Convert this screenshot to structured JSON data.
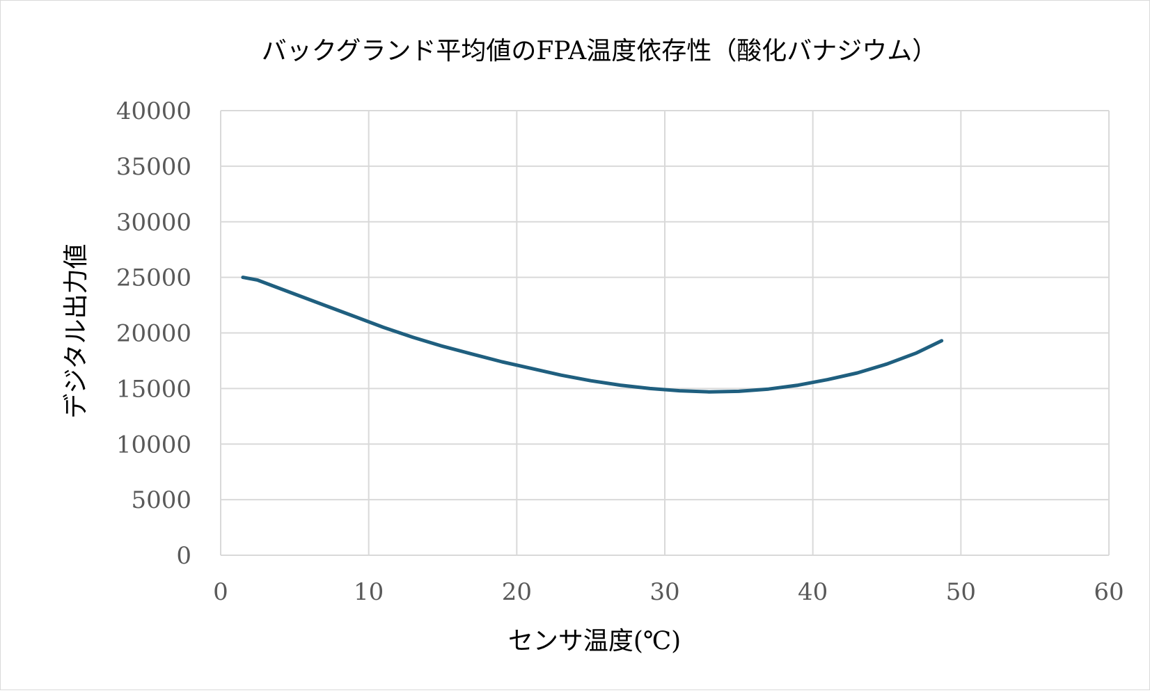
{
  "chart_data": {
    "type": "line",
    "title": "バックグランド平均値のFPA温度依存性（酸化バナジウム）",
    "xlabel": "センサ温度(℃)",
    "ylabel": "デジタル出力値",
    "xlim": [
      0,
      60
    ],
    "ylim": [
      0,
      40000
    ],
    "x_ticks": [
      "0",
      "10",
      "20",
      "30",
      "40",
      "50",
      "60"
    ],
    "y_ticks": [
      "0",
      "5000",
      "10000",
      "15000",
      "20000",
      "25000",
      "30000",
      "35000",
      "40000"
    ],
    "grid": true,
    "legend": "none",
    "line_color": "#1f5f7f",
    "series": [
      {
        "x": [
          1.5,
          2.5,
          3.5,
          5,
          7,
          9,
          11,
          13,
          15,
          17,
          19,
          21,
          23,
          25,
          27,
          29,
          31,
          33,
          35,
          37,
          39,
          41,
          43,
          45,
          47,
          48.7
        ],
        "y": [
          25000,
          24750,
          24250,
          23500,
          22500,
          21500,
          20500,
          19600,
          18800,
          18100,
          17400,
          16800,
          16200,
          15700,
          15300,
          15000,
          14800,
          14700,
          14750,
          14950,
          15300,
          15800,
          16400,
          17200,
          18200,
          19300
        ]
      }
    ]
  }
}
